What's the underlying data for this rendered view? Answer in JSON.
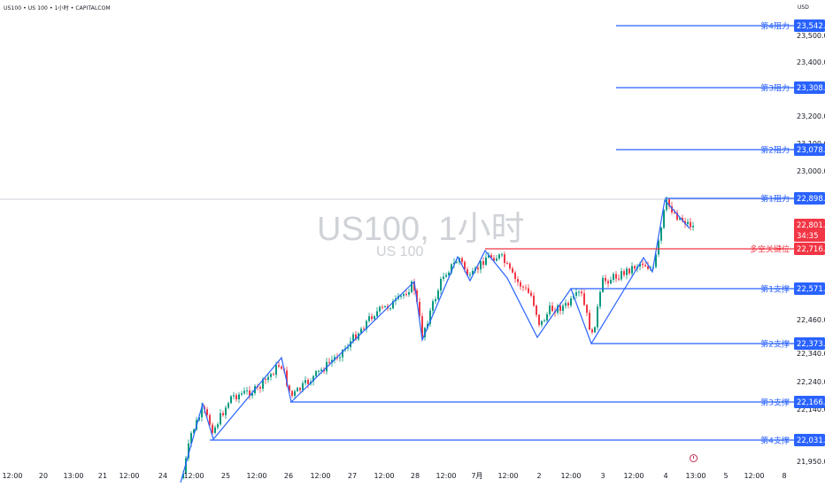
{
  "header": {
    "symbol_line": "US100 • US 100 • 1小时 • CAPITALCOM",
    "currency": "USD"
  },
  "watermark": {
    "main": "US100, 1小时",
    "sub": "US 100"
  },
  "colors": {
    "up": "#089981",
    "down": "#f23645",
    "resistance": "#2962ff",
    "key_level": "#f23645",
    "zigzag": "#2962ff",
    "current_price": "#f23645"
  },
  "chart_data": {
    "type": "candlestick",
    "price_axis_ticks": [
      "23,500.0",
      "23,400.0",
      "23,300.0",
      "23,200.0",
      "23,100.0",
      "23,000.0",
      "22,460.0",
      "22,340.0",
      "22,240.0",
      "22,140.0",
      "21,950.0"
    ],
    "time_axis_ticks": [
      "12:00",
      "20",
      "13:00",
      "21",
      "12:00",
      "24",
      "12:00",
      "25",
      "12:00",
      "26",
      "12:00",
      "27",
      "12:00",
      "28",
      "12:00",
      "7月",
      "12:00",
      "2",
      "12:00",
      "3",
      "12:00",
      "4",
      "13:00",
      "5",
      "12:00",
      "8"
    ],
    "levels": [
      {
        "label": "第4阻力",
        "price": "23,542.4",
        "value": 23542.4,
        "kind": "resistance"
      },
      {
        "label": "第3阻力",
        "price": "23,308.2",
        "value": 23308.2,
        "kind": "resistance"
      },
      {
        "label": "第2阻力",
        "price": "23,078.4",
        "value": 23078.4,
        "kind": "resistance"
      },
      {
        "label": "第1阻力",
        "price": "22,898.9",
        "value": 22898.9,
        "kind": "resistance"
      },
      {
        "label": "多空关键位",
        "price": "22,716.3",
        "value": 22716.3,
        "kind": "key"
      },
      {
        "label": "第1支撑",
        "price": "22,571.7",
        "value": 22571.7,
        "kind": "support"
      },
      {
        "label": "第2支撑",
        "price": "22,373.7",
        "value": 22373.7,
        "kind": "support"
      },
      {
        "label": "第3支撑",
        "price": "22,166.4",
        "value": 22166.4,
        "kind": "support"
      },
      {
        "label": "第4支撑",
        "price": "22,031.0",
        "value": 22031.0,
        "kind": "support"
      }
    ],
    "current_price": {
      "price": "22,801.7",
      "countdown": "34:35",
      "value": 22801.7
    }
  }
}
